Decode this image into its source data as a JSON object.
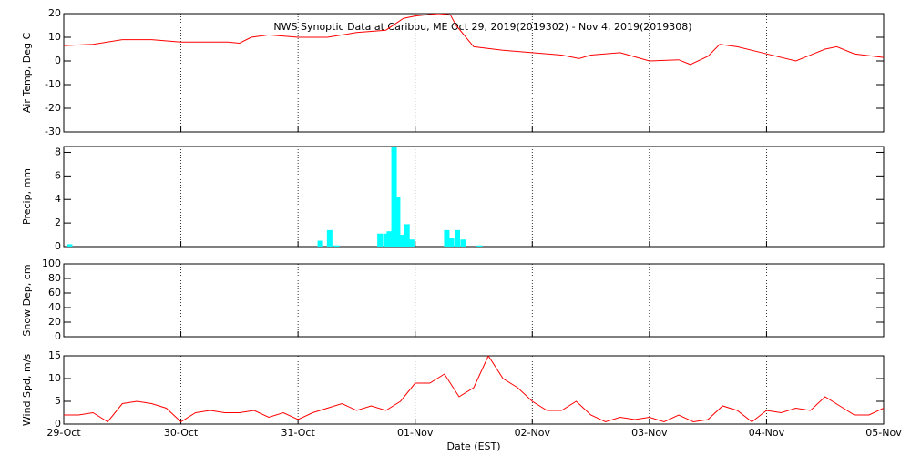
{
  "chart_data": [
    {
      "type": "line",
      "title": "NWS Synoptic Data at Caribou, ME   Oct 29, 2019(2019302) - Nov  4, 2019(2019308)",
      "ylabel": "Air Temp, Deg C",
      "color": "#ff0000",
      "xgrid": true,
      "x": [
        0,
        0.25,
        0.5,
        0.75,
        1.0,
        1.25,
        1.4,
        1.5,
        1.6,
        1.75,
        2.0,
        2.25,
        2.5,
        2.75,
        2.9,
        3.0,
        3.2,
        3.3,
        3.35,
        3.5,
        3.75,
        4.0,
        4.25,
        4.4,
        4.5,
        4.75,
        5.0,
        5.25,
        5.35,
        5.5,
        5.6,
        5.75,
        6.0,
        6.25,
        6.5,
        6.6,
        6.75,
        7.0
      ],
      "values": [
        6.5,
        7,
        9,
        9,
        8,
        8,
        8,
        7.5,
        10,
        11,
        10,
        10,
        12,
        13,
        18,
        19,
        20,
        19.5,
        15,
        6,
        4.5,
        3.5,
        2.5,
        1,
        2.5,
        3.5,
        0,
        0.5,
        -1.5,
        2,
        7,
        6,
        3,
        0,
        5,
        6,
        3,
        1.5
      ],
      "xlim": [
        0,
        7
      ],
      "xticks": [
        0,
        1,
        2,
        3,
        4,
        5,
        6,
        7
      ],
      "ylim": [
        -30,
        20
      ],
      "yticks": [
        -30,
        -20,
        -10,
        0,
        10,
        20
      ]
    },
    {
      "type": "bar",
      "ylabel": "Precip, mm",
      "color": "#00ffff",
      "xgrid": true,
      "x": [
        0.05,
        2.19,
        2.27,
        2.33,
        2.7,
        2.75,
        2.78,
        2.82,
        2.85,
        2.89,
        2.93,
        2.97,
        3.27,
        3.31,
        3.36,
        3.41,
        3.55
      ],
      "values": [
        0.2,
        0.5,
        1.4,
        0.1,
        1.1,
        1.1,
        1.3,
        9,
        4.2,
        1,
        1.9,
        0.6,
        1.4,
        0.7,
        1.4,
        0.6,
        0.1
      ],
      "xlim": [
        0,
        7
      ],
      "xticks": [
        0,
        1,
        2,
        3,
        4,
        5,
        6,
        7
      ],
      "ylim": [
        0,
        8.5
      ],
      "yticks": [
        0,
        2,
        4,
        6,
        8
      ]
    },
    {
      "type": "line",
      "ylabel": "Snow Dep, cm",
      "xgrid": true,
      "xlim": [
        0,
        7
      ],
      "xticks": [
        0,
        1,
        2,
        3,
        4,
        5,
        6,
        7
      ],
      "ylim": [
        0,
        100
      ],
      "yticks": [
        0,
        20,
        40,
        60,
        80,
        100
      ]
    },
    {
      "type": "line",
      "ylabel": "Wind Spd, m/s",
      "xlabel": "Date (EST)",
      "color": "#ff0000",
      "xgrid": true,
      "x": [
        0,
        0.125,
        0.25,
        0.375,
        0.5,
        0.625,
        0.75,
        0.875,
        1.0,
        1.125,
        1.25,
        1.375,
        1.5,
        1.625,
        1.75,
        1.875,
        2.0,
        2.125,
        2.25,
        2.375,
        2.5,
        2.625,
        2.75,
        2.875,
        3.0,
        3.125,
        3.25,
        3.375,
        3.5,
        3.625,
        3.75,
        3.875,
        4.0,
        4.125,
        4.25,
        4.375,
        4.5,
        4.625,
        4.75,
        4.875,
        5.0,
        5.125,
        5.25,
        5.375,
        5.5,
        5.625,
        5.75,
        5.875,
        6.0,
        6.125,
        6.25,
        6.375,
        6.5,
        6.625,
        6.75,
        6.875,
        7.0
      ],
      "values": [
        2,
        2,
        2.5,
        0.5,
        4.5,
        5,
        4.5,
        3.5,
        0.5,
        2.5,
        3,
        2.5,
        2.5,
        3,
        1.5,
        2.5,
        1,
        2.5,
        3.5,
        4.5,
        3,
        4,
        3,
        5,
        9,
        9,
        11,
        6,
        8,
        15,
        10,
        8,
        5,
        3,
        3,
        5,
        2,
        0.5,
        1.5,
        1,
        1.5,
        0.5,
        2,
        0.5,
        1,
        4,
        3,
        0.5,
        3,
        2.5,
        3.5,
        3,
        6,
        4,
        2,
        2,
        3.5
      ],
      "xlim": [
        0,
        7
      ],
      "xticks": [
        {
          "value": 0,
          "label": "29-Oct"
        },
        {
          "value": 1,
          "label": "30-Oct"
        },
        {
          "value": 2,
          "label": "31-Oct"
        },
        {
          "value": 3,
          "label": "01-Nov"
        },
        {
          "value": 4,
          "label": "02-Nov"
        },
        {
          "value": 5,
          "label": "03-Nov"
        },
        {
          "value": 6,
          "label": "04-Nov"
        },
        {
          "value": 7,
          "label": "05-Nov"
        }
      ],
      "ylim": [
        0,
        15
      ],
      "yticks": [
        0,
        5,
        10,
        15
      ]
    }
  ]
}
